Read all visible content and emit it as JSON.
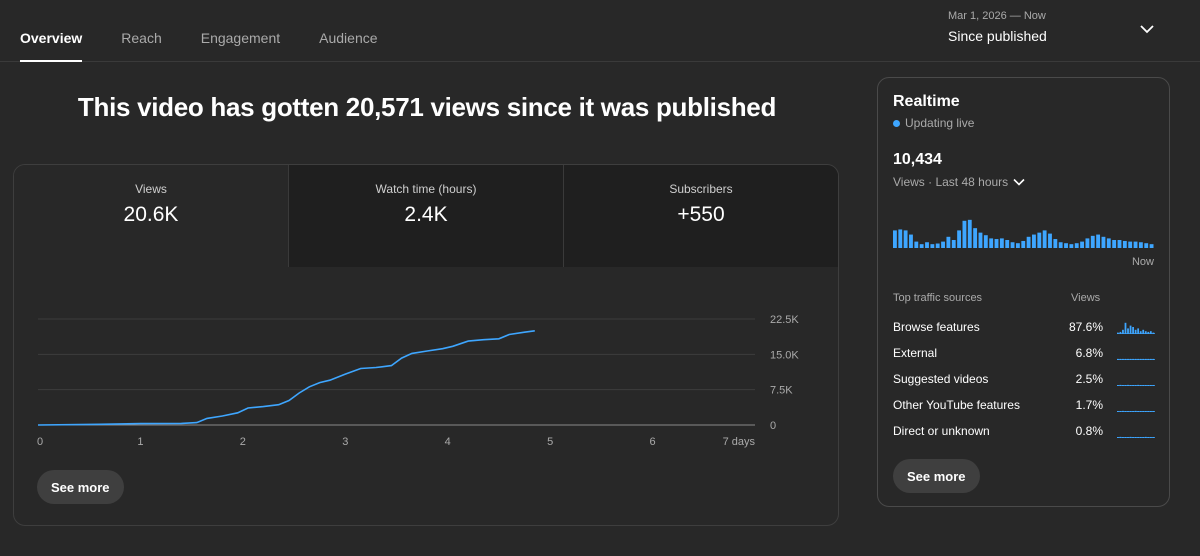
{
  "nav": {
    "tabs": [
      {
        "label": "Overview",
        "active": true
      },
      {
        "label": "Reach",
        "active": false
      },
      {
        "label": "Engagement",
        "active": false
      },
      {
        "label": "Audience",
        "active": false
      }
    ],
    "date_range": {
      "sub": "Mar 1, 2026 — Now",
      "main": "Since published"
    }
  },
  "headline": "This video has gotten 20,571 views since it was published",
  "metrics": [
    {
      "label": "Views",
      "value": "20.6K"
    },
    {
      "label": "Watch time (hours)",
      "value": "2.4K"
    },
    {
      "label": "Subscribers",
      "value": "+550"
    }
  ],
  "chart_data": {
    "type": "line",
    "title": "",
    "xlabel": "",
    "ylabel": "",
    "x_ticks": [
      "0",
      "1",
      "2",
      "3",
      "4",
      "5",
      "6",
      "7 days"
    ],
    "y_ticks": [
      "0",
      "7.5K",
      "15.0K",
      "22.5K"
    ],
    "xlim": [
      0,
      7
    ],
    "ylim": [
      0,
      22500
    ],
    "grid": true,
    "color": "#3ea6ff",
    "series": [
      {
        "x": [
          0,
          0.6,
          1.0,
          1.4,
          1.55,
          1.65,
          1.8,
          1.95,
          2.05,
          2.2,
          2.35,
          2.45,
          2.55,
          2.65,
          2.75,
          2.85,
          3.0,
          3.15,
          3.3,
          3.45,
          3.55,
          3.65,
          3.8,
          3.95,
          4.05,
          4.2,
          4.35,
          4.5,
          4.6,
          4.75,
          4.85
        ],
        "y": [
          0,
          150,
          300,
          350,
          500,
          1400,
          1900,
          2600,
          3600,
          3900,
          4300,
          5200,
          6800,
          8100,
          9000,
          9500,
          10800,
          12000,
          12200,
          12600,
          14200,
          15200,
          15700,
          16200,
          16700,
          17800,
          18100,
          18300,
          19200,
          19700,
          20000
        ]
      }
    ]
  },
  "see_more_label": "See more",
  "realtime": {
    "title": "Realtime",
    "live_label": "Updating live",
    "count": "10,434",
    "period": "Views · Last 48 hours",
    "now_label": "Now",
    "bar_color": "#3ea6ff",
    "bars": [
      0.55,
      0.58,
      0.55,
      0.42,
      0.2,
      0.12,
      0.18,
      0.12,
      0.14,
      0.2,
      0.35,
      0.25,
      0.55,
      0.85,
      0.88,
      0.62,
      0.48,
      0.4,
      0.3,
      0.28,
      0.3,
      0.25,
      0.18,
      0.15,
      0.22,
      0.35,
      0.42,
      0.48,
      0.55,
      0.45,
      0.28,
      0.18,
      0.15,
      0.12,
      0.15,
      0.2,
      0.3,
      0.38,
      0.42,
      0.35,
      0.3,
      0.25,
      0.25,
      0.22,
      0.2,
      0.2,
      0.18,
      0.15,
      0.12
    ],
    "traffic_header": {
      "source": "Top traffic sources",
      "views": "Views"
    },
    "traffic_sources": [
      {
        "name": "Browse features",
        "pct": "87.6%",
        "spark": [
          0.1,
          0.15,
          0.3,
          0.8,
          0.4,
          0.6,
          0.5,
          0.3,
          0.4,
          0.2,
          0.3,
          0.2,
          0.15,
          0.2,
          0.1
        ]
      },
      {
        "name": "External",
        "pct": "6.8%",
        "spark": [
          0.08,
          0.08,
          0.08,
          0.08,
          0.08,
          0.08,
          0.08,
          0.08,
          0.08,
          0.08,
          0.08,
          0.08,
          0.08,
          0.08,
          0.08
        ]
      },
      {
        "name": "Suggested videos",
        "pct": "2.5%",
        "spark": [
          0.05,
          0.08,
          0.05,
          0.05,
          0.08,
          0.05,
          0.05,
          0.05,
          0.08,
          0.05,
          0.05,
          0.05,
          0.05,
          0.05,
          0.05
        ]
      },
      {
        "name": "Other YouTube features",
        "pct": "1.7%",
        "spark": [
          0.05,
          0.05,
          0.08,
          0.05,
          0.05,
          0.05,
          0.05,
          0.08,
          0.05,
          0.05,
          0.05,
          0.05,
          0.05,
          0.05,
          0.05
        ]
      },
      {
        "name": "Direct or unknown",
        "pct": "0.8%",
        "spark": [
          0.05,
          0.08,
          0.05,
          0.05,
          0.05,
          0.08,
          0.05,
          0.05,
          0.05,
          0.05,
          0.05,
          0.08,
          0.05,
          0.05,
          0.05
        ]
      }
    ]
  }
}
